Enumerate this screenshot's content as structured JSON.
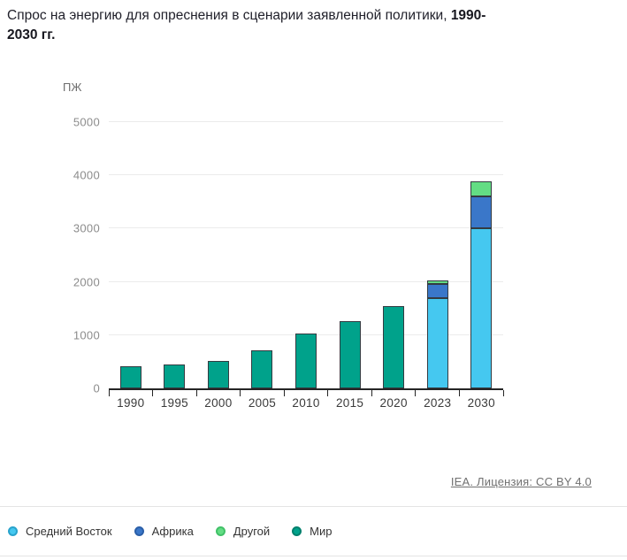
{
  "title": {
    "main": "Спрос на энергию для опреснения в сценарии заявленной политики, ",
    "years": "1990-2030 гг."
  },
  "chart_data": {
    "type": "bar",
    "stacked": true,
    "title": "Спрос на энергию для опреснения в сценарии заявленной политики, 1990-2030 гг.",
    "unit": "ПЖ",
    "xlabel": "",
    "ylabel": "ПЖ",
    "ylim": [
      0,
      5000
    ],
    "yticks": [
      0,
      1000,
      2000,
      3000,
      4000,
      5000
    ],
    "grid": true,
    "legend_position": "bottom",
    "categories": [
      "1990",
      "1995",
      "2000",
      "2005",
      "2010",
      "2015",
      "2020",
      "2023",
      "2030"
    ],
    "series": [
      {
        "name": "Средний Восток",
        "color": "#45c8f0",
        "ring": "#29a3cc",
        "values": [
          null,
          null,
          null,
          null,
          null,
          null,
          null,
          1690,
          3000
        ]
      },
      {
        "name": "Африка",
        "color": "#3a77c9",
        "ring": "#2b5fa8",
        "values": [
          null,
          null,
          null,
          null,
          null,
          null,
          null,
          265,
          610
        ]
      },
      {
        "name": "Другой",
        "color": "#63dd84",
        "ring": "#41c168",
        "values": [
          null,
          null,
          null,
          null,
          null,
          null,
          null,
          80,
          280
        ]
      },
      {
        "name": "Мир",
        "color": "#00a28b",
        "ring": "#00806d",
        "values": [
          415,
          450,
          510,
          715,
          1030,
          1255,
          1545,
          null,
          null
        ]
      }
    ]
  },
  "footer": {
    "attribution": "IEA. Лицензия: CC BY 4.0"
  }
}
